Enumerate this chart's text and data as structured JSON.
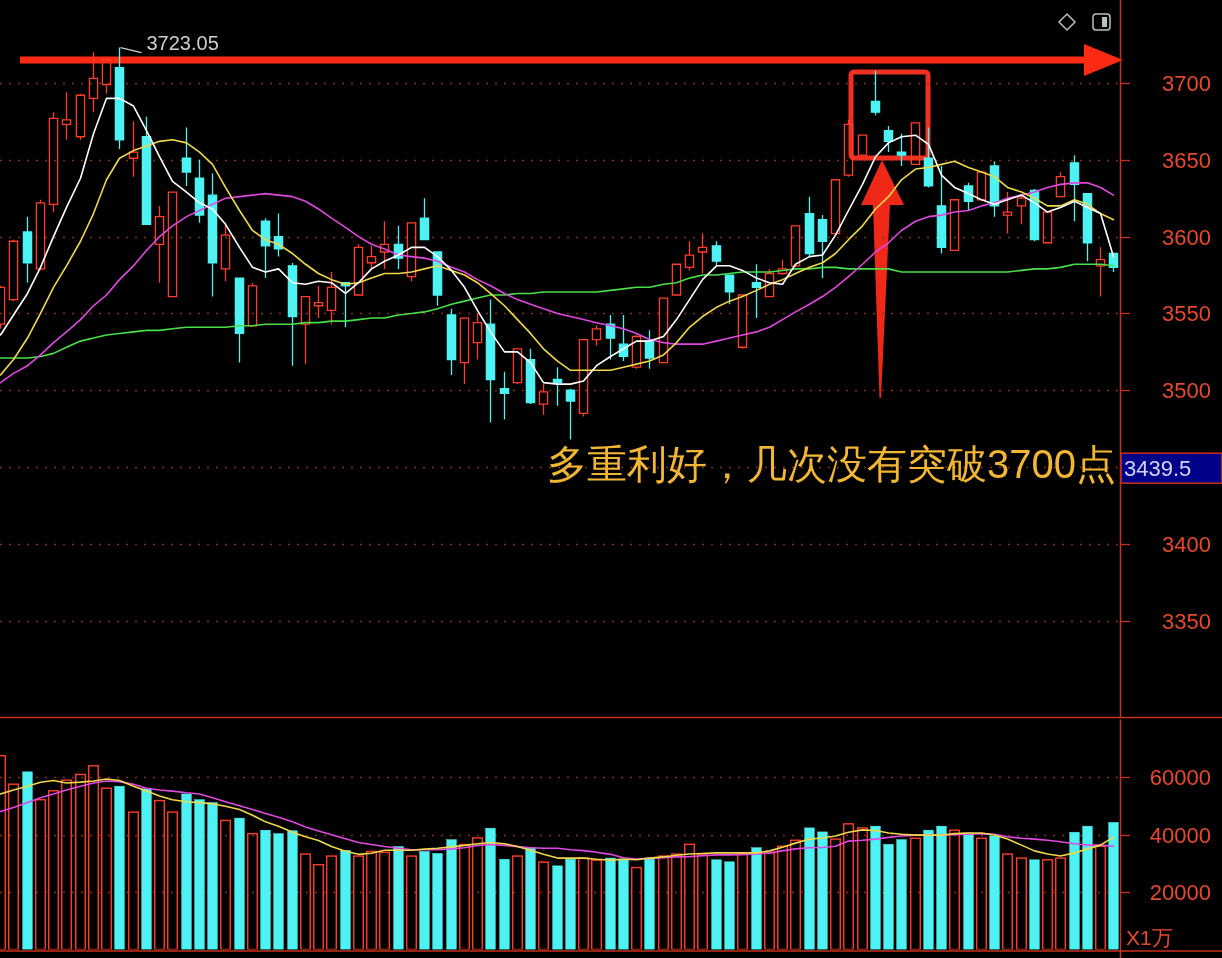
{
  "chart_data": [
    {
      "type": "candlestick",
      "categories": [
        null,
        null,
        null,
        null,
        null,
        null,
        null,
        null,
        null,
        null,
        null,
        null,
        null,
        null,
        null,
        null,
        null,
        null,
        null,
        null,
        null,
        null,
        null,
        null,
        null,
        null,
        null,
        null,
        null,
        null,
        null,
        null,
        null,
        null,
        null,
        null,
        null,
        null,
        null,
        null,
        null,
        null,
        null,
        null,
        null,
        null,
        null,
        null,
        null,
        null,
        null,
        null,
        null,
        null,
        null,
        null,
        null,
        null,
        null,
        null,
        null,
        null,
        null,
        null,
        null,
        null,
        null,
        null,
        null,
        null,
        null,
        null,
        null,
        null,
        null,
        null,
        null,
        null,
        null,
        null,
        null,
        null,
        null,
        null,
        null
      ],
      "ohlc": [
        [
          3543,
          3568,
          3540,
          3567
        ],
        [
          3559,
          3598,
          3558,
          3597
        ],
        [
          3603,
          3613,
          3570,
          3583
        ],
        [
          3579,
          3624,
          3578,
          3622
        ],
        [
          3621,
          3681,
          3616,
          3677
        ],
        [
          3673,
          3694,
          3663,
          3676
        ],
        [
          3665,
          3693,
          3663,
          3692
        ],
        [
          3690,
          3720,
          3681,
          3703
        ],
        [
          3699,
          3717,
          3693,
          3715
        ],
        [
          3710,
          3723.05,
          3657,
          3663
        ],
        [
          3651,
          3675,
          3639,
          3655
        ],
        [
          3665,
          3678,
          3608,
          3608
        ],
        [
          3595,
          3620,
          3570,
          3613
        ],
        [
          3561,
          3629,
          3561,
          3629
        ],
        [
          3651,
          3671,
          3633,
          3642
        ],
        [
          3638,
          3650,
          3609,
          3614
        ],
        [
          3627,
          3641,
          3561,
          3583
        ],
        [
          3579,
          3609,
          3571,
          3601
        ],
        [
          3573,
          3573,
          3518,
          3537
        ],
        [
          3542,
          3570,
          3542,
          3568
        ],
        [
          3610,
          3612,
          3573,
          3594
        ],
        [
          3600,
          3615,
          3587,
          3592
        ],
        [
          3581,
          3583,
          3516,
          3548
        ],
        [
          3543,
          3561,
          3517,
          3561
        ],
        [
          3555,
          3568,
          3547,
          3557
        ],
        [
          3552,
          3577,
          3543,
          3567
        ],
        [
          3570,
          3570,
          3541,
          3568
        ],
        [
          3562,
          3595,
          3562,
          3593
        ],
        [
          3583,
          3594,
          3579,
          3587
        ],
        [
          3590,
          3610,
          3579,
          3595
        ],
        [
          3595,
          3607,
          3579,
          3586
        ],
        [
          3574,
          3609,
          3571,
          3609
        ],
        [
          3612,
          3625,
          3598,
          3598
        ],
        [
          3590,
          3590,
          3555,
          3562
        ],
        [
          3549,
          3553,
          3510,
          3520
        ],
        [
          3518,
          3547,
          3504,
          3547
        ],
        [
          3531,
          3550,
          3520,
          3544
        ],
        [
          3543,
          3559,
          3479,
          3507
        ],
        [
          3501,
          3512,
          3481,
          3498
        ],
        [
          3505,
          3527,
          3504,
          3527
        ],
        [
          3520,
          3527,
          3491,
          3492
        ],
        [
          3491,
          3504,
          3484,
          3499
        ],
        [
          3507,
          3515,
          3490,
          3505
        ],
        [
          3500,
          3501,
          3468,
          3493
        ],
        [
          3485,
          3533,
          3483,
          3533
        ],
        [
          3533,
          3542,
          3529,
          3540
        ],
        [
          3543,
          3549,
          3520,
          3534
        ],
        [
          3530,
          3549,
          3519,
          3522
        ],
        [
          3515,
          3536,
          3514,
          3535
        ],
        [
          3532,
          3539,
          3514,
          3521
        ],
        [
          3518,
          3560,
          3518,
          3560
        ],
        [
          3562,
          3582,
          3562,
          3582
        ],
        [
          3580,
          3597,
          3578,
          3588
        ],
        [
          3590,
          3602,
          3576,
          3593
        ],
        [
          3594,
          3597,
          3581,
          3584
        ],
        [
          3575,
          3575,
          3556,
          3564
        ],
        [
          3528,
          3562,
          3527,
          3562
        ],
        [
          3570,
          3582,
          3547,
          3567
        ],
        [
          3561,
          3579,
          3561,
          3576
        ],
        [
          3576,
          3585,
          3575,
          3579
        ],
        [
          3581,
          3607,
          3580,
          3607
        ],
        [
          3615,
          3626,
          3587,
          3589
        ],
        [
          3611,
          3614,
          3573,
          3597
        ],
        [
          3602,
          3637,
          3601,
          3637
        ],
        [
          3640,
          3676,
          3639,
          3673
        ],
        [
          3653,
          3666,
          3653,
          3666
        ],
        [
          3688,
          3708,
          3679,
          3681
        ],
        [
          3669,
          3672,
          3655,
          3662
        ],
        [
          3655,
          3667,
          3646,
          3653
        ],
        [
          3647,
          3674,
          3647,
          3674
        ],
        [
          3651,
          3671,
          3632,
          3633
        ],
        [
          3620,
          3646,
          3589,
          3593
        ],
        [
          3591,
          3624,
          3591,
          3624
        ],
        [
          3633,
          3635,
          3617,
          3623
        ],
        [
          3624,
          3642,
          3624,
          3642
        ],
        [
          3646,
          3649,
          3613,
          3620
        ],
        [
          3614,
          3629,
          3602,
          3616
        ],
        [
          3620,
          3627,
          3608,
          3625
        ],
        [
          3630,
          3631,
          3597,
          3598
        ],
        [
          3596,
          3616,
          3596,
          3616
        ],
        [
          3626,
          3642,
          3626,
          3639
        ],
        [
          3648,
          3653,
          3610,
          3634
        ],
        [
          3628,
          3628,
          3584,
          3596
        ],
        [
          3581,
          3593,
          3561,
          3585
        ],
        [
          3589,
          3589,
          3577,
          3580
        ]
      ],
      "colors": [
        "#ff3c28",
        "#ff3c28",
        "#4ef2f2",
        "#ff3c28",
        "#ff3c28",
        "#ff3c28",
        "#ff3c28",
        "#ff3c28",
        "#ff3c28",
        "#4ef2f2",
        "#ff3c28",
        "#4ef2f2",
        "#ff3c28",
        "#ff3c28",
        "#4ef2f2",
        "#4ef2f2",
        "#4ef2f2",
        "#ff3c28",
        "#4ef2f2",
        "#ff3c28",
        "#4ef2f2",
        "#4ef2f2",
        "#4ef2f2",
        "#ff3c28",
        "#ff3c28",
        "#ff3c28",
        "#4ef2f2",
        "#ff3c28",
        "#ff3c28",
        "#ff3c28",
        "#4ef2f2",
        "#ff3c28",
        "#4ef2f2",
        "#4ef2f2",
        "#4ef2f2",
        "#ff3c28",
        "#ff3c28",
        "#4ef2f2",
        "#4ef2f2",
        "#ff3c28",
        "#4ef2f2",
        "#ff3c28",
        "#4ef2f2",
        "#4ef2f2",
        "#ff3c28",
        "#ff3c28",
        "#4ef2f2",
        "#4ef2f2",
        "#ff3c28",
        "#4ef2f2",
        "#ff3c28",
        "#ff3c28",
        "#ff3c28",
        "#ff3c28",
        "#4ef2f2",
        "#4ef2f2",
        "#ff3c28",
        "#4ef2f2",
        "#ff3c28",
        "#ff3c28",
        "#ff3c28",
        "#4ef2f2",
        "#4ef2f2",
        "#ff3c28",
        "#ff3c28",
        "#ff3c28",
        "#4ef2f2",
        "#4ef2f2",
        "#4ef2f2",
        "#ff3c28",
        "#4ef2f2",
        "#4ef2f2",
        "#ff3c28",
        "#4ef2f2",
        "#ff3c28",
        "#4ef2f2",
        "#ff3c28",
        "#ff3c28",
        "#4ef2f2",
        "#ff3c28",
        "#ff3c28",
        "#4ef2f2",
        "#4ef2f2",
        "#ff3c28",
        "#4ef2f2"
      ],
      "series": [
        {
          "type": "line",
          "color": "#48e048",
          "values": [
            3521,
            3521,
            3521,
            3522,
            3524,
            3528,
            3532,
            3534,
            3536,
            3537,
            3538,
            3539,
            3539,
            3540,
            3541,
            3541,
            3541,
            3541,
            3542,
            3542,
            3543,
            3543,
            3543,
            3544,
            3544,
            3545,
            3545,
            3546,
            3547,
            3547,
            3549,
            3550,
            3551,
            3553,
            3556,
            3558,
            3560,
            3562,
            3562,
            3563,
            3563,
            3564,
            3564,
            3564,
            3564,
            3564,
            3565,
            3566,
            3567,
            3567,
            3569,
            3570,
            3573,
            3575,
            3575,
            3576,
            3577,
            3577,
            3577,
            3578,
            3579,
            3579,
            3580,
            3580,
            3579,
            3579,
            3579,
            3579,
            3577,
            3577,
            3577,
            3577,
            3577,
            3577,
            3577,
            3577,
            3577,
            3578,
            3579,
            3579,
            3580,
            3582,
            3582,
            3582,
            3581
          ]
        },
        {
          "type": "line",
          "color": "#e048e0",
          "values": [
            3505,
            3511,
            3516,
            3523,
            3531,
            3538,
            3546,
            3555,
            3562,
            3572,
            3581,
            3591,
            3600,
            3607,
            3613,
            3617,
            3621,
            3625,
            3626,
            3627,
            3628,
            3627,
            3626,
            3623,
            3618,
            3612,
            3606,
            3600,
            3595,
            3592,
            3588,
            3587,
            3586,
            3584,
            3580,
            3577,
            3572,
            3568,
            3563,
            3559,
            3556,
            3553,
            3550,
            3548,
            3546,
            3544,
            3542,
            3540,
            3537,
            3533,
            3531,
            3530,
            3530,
            3530,
            3532,
            3534,
            3536,
            3538,
            3541,
            3546,
            3551,
            3556,
            3561,
            3567,
            3574,
            3582,
            3590,
            3596,
            3604,
            3610,
            3613,
            3614,
            3616,
            3617,
            3620,
            3622,
            3625,
            3627,
            3629,
            3632,
            3634,
            3635,
            3635,
            3632,
            3627
          ]
        },
        {
          "type": "line",
          "color": "#f0d848",
          "values": [
            3510,
            3520,
            3534,
            3550,
            3567,
            3581,
            3597,
            3615,
            3637,
            3651,
            3656,
            3659,
            3662,
            3663,
            3661,
            3655,
            3647,
            3632,
            3617,
            3604,
            3598,
            3595,
            3589,
            3582,
            3576,
            3572,
            3569,
            3570,
            3573,
            3576,
            3576,
            3577,
            3579,
            3581,
            3578,
            3575,
            3570,
            3563,
            3555,
            3546,
            3537,
            3527,
            3519,
            3513,
            3513,
            3513,
            3513,
            3515,
            3517,
            3519,
            3523,
            3531,
            3541,
            3548,
            3554,
            3558,
            3561,
            3565,
            3569,
            3572,
            3576,
            3580,
            3583,
            3589,
            3598,
            3607,
            3618,
            3626,
            3637,
            3644,
            3645,
            3647,
            3649,
            3645,
            3642,
            3639,
            3632,
            3629,
            3625,
            3620,
            3620,
            3624,
            3621,
            3615,
            3611
          ]
        },
        {
          "type": "line",
          "color": "#ffffff",
          "values": [
            3536,
            3549,
            3563,
            3580,
            3600,
            3619,
            3638,
            3667,
            3690,
            3690,
            3685,
            3669,
            3652,
            3636,
            3629,
            3622,
            3618,
            3608,
            3593,
            3580,
            3577,
            3579,
            3570,
            3569,
            3571,
            3570,
            3563,
            3570,
            3579,
            3584,
            3588,
            3593,
            3593,
            3587,
            3578,
            3567,
            3552,
            3538,
            3525,
            3525,
            3518,
            3505,
            3504,
            3504,
            3506,
            3516,
            3522,
            3527,
            3532,
            3532,
            3535,
            3546,
            3559,
            3572,
            3581,
            3581,
            3578,
            3573,
            3570,
            3569,
            3582,
            3587,
            3588,
            3601,
            3617,
            3634,
            3652,
            3661,
            3665,
            3666,
            3660,
            3640,
            3632,
            3628,
            3624,
            3621,
            3624,
            3627,
            3622,
            3616,
            3619,
            3623,
            3619,
            3615,
            3587
          ]
        }
      ],
      "ylim": [
        3288,
        3754
      ],
      "yticks": [
        3350,
        3400,
        {
          "value": 3450,
          "label": null
        },
        3500,
        3550,
        3600,
        3650,
        3700
      ],
      "grid": "y",
      "tick_labels": "y",
      "annotations": [
        "3723.05",
        "多重利好，几次没有突破3700点",
        "3439.5"
      ],
      "ref_lines": [
        {
          "axis": "y",
          "value": 3715,
          "color": "#ff2a14",
          "line_style": "solid"
        }
      ]
    },
    {
      "type": "bar",
      "categories": [
        null,
        null,
        null,
        null,
        null,
        null,
        null,
        null,
        null,
        null,
        null,
        null,
        null,
        null,
        null,
        null,
        null,
        null,
        null,
        null,
        null,
        null,
        null,
        null,
        null,
        null,
        null,
        null,
        null,
        null,
        null,
        null,
        null,
        null,
        null,
        null,
        null,
        null,
        null,
        null,
        null,
        null,
        null,
        null,
        null,
        null,
        null,
        null,
        null,
        null,
        null,
        null,
        null,
        null,
        null,
        null,
        null,
        null,
        null,
        null,
        null,
        null,
        null,
        null,
        null,
        null,
        null,
        null,
        null,
        null,
        null,
        null,
        null,
        null,
        null,
        null,
        null,
        null,
        null,
        null,
        null,
        null,
        null,
        null,
        null
      ],
      "series": [
        {
          "type": "bar",
          "colors": [
            "#ff3c28",
            "#ff3c28",
            "#4ef2f2",
            "#ff3c28",
            "#ff3c28",
            "#ff3c28",
            "#ff3c28",
            "#ff3c28",
            "#ff3c28",
            "#4ef2f2",
            "#ff3c28",
            "#4ef2f2",
            "#ff3c28",
            "#ff3c28",
            "#4ef2f2",
            "#4ef2f2",
            "#4ef2f2",
            "#ff3c28",
            "#4ef2f2",
            "#ff3c28",
            "#4ef2f2",
            "#4ef2f2",
            "#4ef2f2",
            "#ff3c28",
            "#ff3c28",
            "#ff3c28",
            "#4ef2f2",
            "#ff3c28",
            "#ff3c28",
            "#ff3c28",
            "#4ef2f2",
            "#ff3c28",
            "#4ef2f2",
            "#4ef2f2",
            "#4ef2f2",
            "#ff3c28",
            "#ff3c28",
            "#4ef2f2",
            "#4ef2f2",
            "#ff3c28",
            "#4ef2f2",
            "#ff3c28",
            "#4ef2f2",
            "#4ef2f2",
            "#ff3c28",
            "#ff3c28",
            "#4ef2f2",
            "#4ef2f2",
            "#ff3c28",
            "#4ef2f2",
            "#ff3c28",
            "#ff3c28",
            "#ff3c28",
            "#ff3c28",
            "#4ef2f2",
            "#4ef2f2",
            "#ff3c28",
            "#4ef2f2",
            "#ff3c28",
            "#ff3c28",
            "#ff3c28",
            "#4ef2f2",
            "#4ef2f2",
            "#ff3c28",
            "#ff3c28",
            "#ff3c28",
            "#4ef2f2",
            "#4ef2f2",
            "#4ef2f2",
            "#ff3c28",
            "#4ef2f2",
            "#4ef2f2",
            "#ff3c28",
            "#4ef2f2",
            "#ff3c28",
            "#4ef2f2",
            "#ff3c28",
            "#ff3c28",
            "#4ef2f2",
            "#ff3c28",
            "#ff3c28",
            "#4ef2f2",
            "#4ef2f2",
            "#ff3c28",
            "#4ef2f2"
          ],
          "values": [
            67400,
            57500,
            61800,
            52100,
            55200,
            58900,
            60900,
            63900,
            56100,
            56800,
            47800,
            55900,
            51800,
            47800,
            54100,
            52100,
            51100,
            44900,
            45700,
            40300,
            41500,
            40300,
            41300,
            33200,
            29500,
            32500,
            34500,
            32500,
            34100,
            33800,
            35800,
            32500,
            34100,
            33400,
            38200,
            36500,
            38800,
            42200,
            31400,
            32500,
            35400,
            30400,
            29100,
            31400,
            31800,
            31100,
            31800,
            31500,
            28500,
            31800,
            32500,
            33200,
            36600,
            32900,
            31200,
            30500,
            33600,
            35400,
            33600,
            35900,
            38000,
            42300,
            40900,
            38400,
            43700,
            42300,
            42900,
            36600,
            38200,
            38700,
            41500,
            42900,
            41500,
            40500,
            38700,
            39500,
            33200,
            31800,
            31200,
            31200,
            31800,
            40800,
            42900,
            35900,
            44200
          ]
        },
        {
          "type": "line",
          "color": "#e048e0",
          "values": [
            48000,
            49400,
            51100,
            52800,
            54100,
            55500,
            56800,
            57900,
            58600,
            58400,
            57500,
            56100,
            55500,
            55100,
            54500,
            54100,
            52800,
            51400,
            50000,
            48700,
            47300,
            46000,
            44400,
            42600,
            41200,
            39900,
            38500,
            37200,
            36500,
            35800,
            35200,
            34700,
            34700,
            34700,
            35000,
            35400,
            36200,
            36500,
            36200,
            35800,
            35400,
            35200,
            35200,
            34700,
            34400,
            33800,
            33100,
            31900,
            31500,
            31700,
            31900,
            32200,
            32300,
            32600,
            32900,
            32900,
            33000,
            33200,
            33600,
            34300,
            35000,
            35400,
            35500,
            35900,
            37700,
            38000,
            38400,
            39000,
            39500,
            39800,
            39800,
            39800,
            39900,
            40100,
            40300,
            40100,
            39200,
            38700,
            38400,
            38000,
            37500,
            36800,
            36300,
            36300,
            35900
          ]
        },
        {
          "type": "line",
          "color": "#f0d848",
          "values": [
            54100,
            55500,
            56800,
            58200,
            58800,
            57900,
            58200,
            58600,
            59300,
            58800,
            56800,
            55100,
            53400,
            52100,
            51400,
            51100,
            50700,
            49800,
            48700,
            46700,
            44400,
            42900,
            40800,
            39200,
            37900,
            35800,
            34200,
            33100,
            33500,
            34500,
            34500,
            34500,
            34900,
            35200,
            35700,
            36200,
            36800,
            37200,
            36800,
            35800,
            34500,
            33100,
            31800,
            31800,
            31800,
            31400,
            31100,
            31400,
            31200,
            31800,
            32200,
            32800,
            33200,
            33400,
            33600,
            33600,
            33600,
            33600,
            34300,
            35600,
            37000,
            38400,
            38800,
            39500,
            40800,
            41600,
            41400,
            40500,
            40100,
            39800,
            39800,
            39800,
            40300,
            40500,
            40500,
            39800,
            38400,
            36300,
            34300,
            33200,
            32500,
            33600,
            35000,
            36300,
            39100
          ]
        }
      ],
      "ylim": [
        0,
        80000
      ],
      "yticks": [
        20000,
        40000,
        60000
      ],
      "ylabel": "X1万",
      "grid": "y",
      "tick_labels": "y"
    }
  ]
}
